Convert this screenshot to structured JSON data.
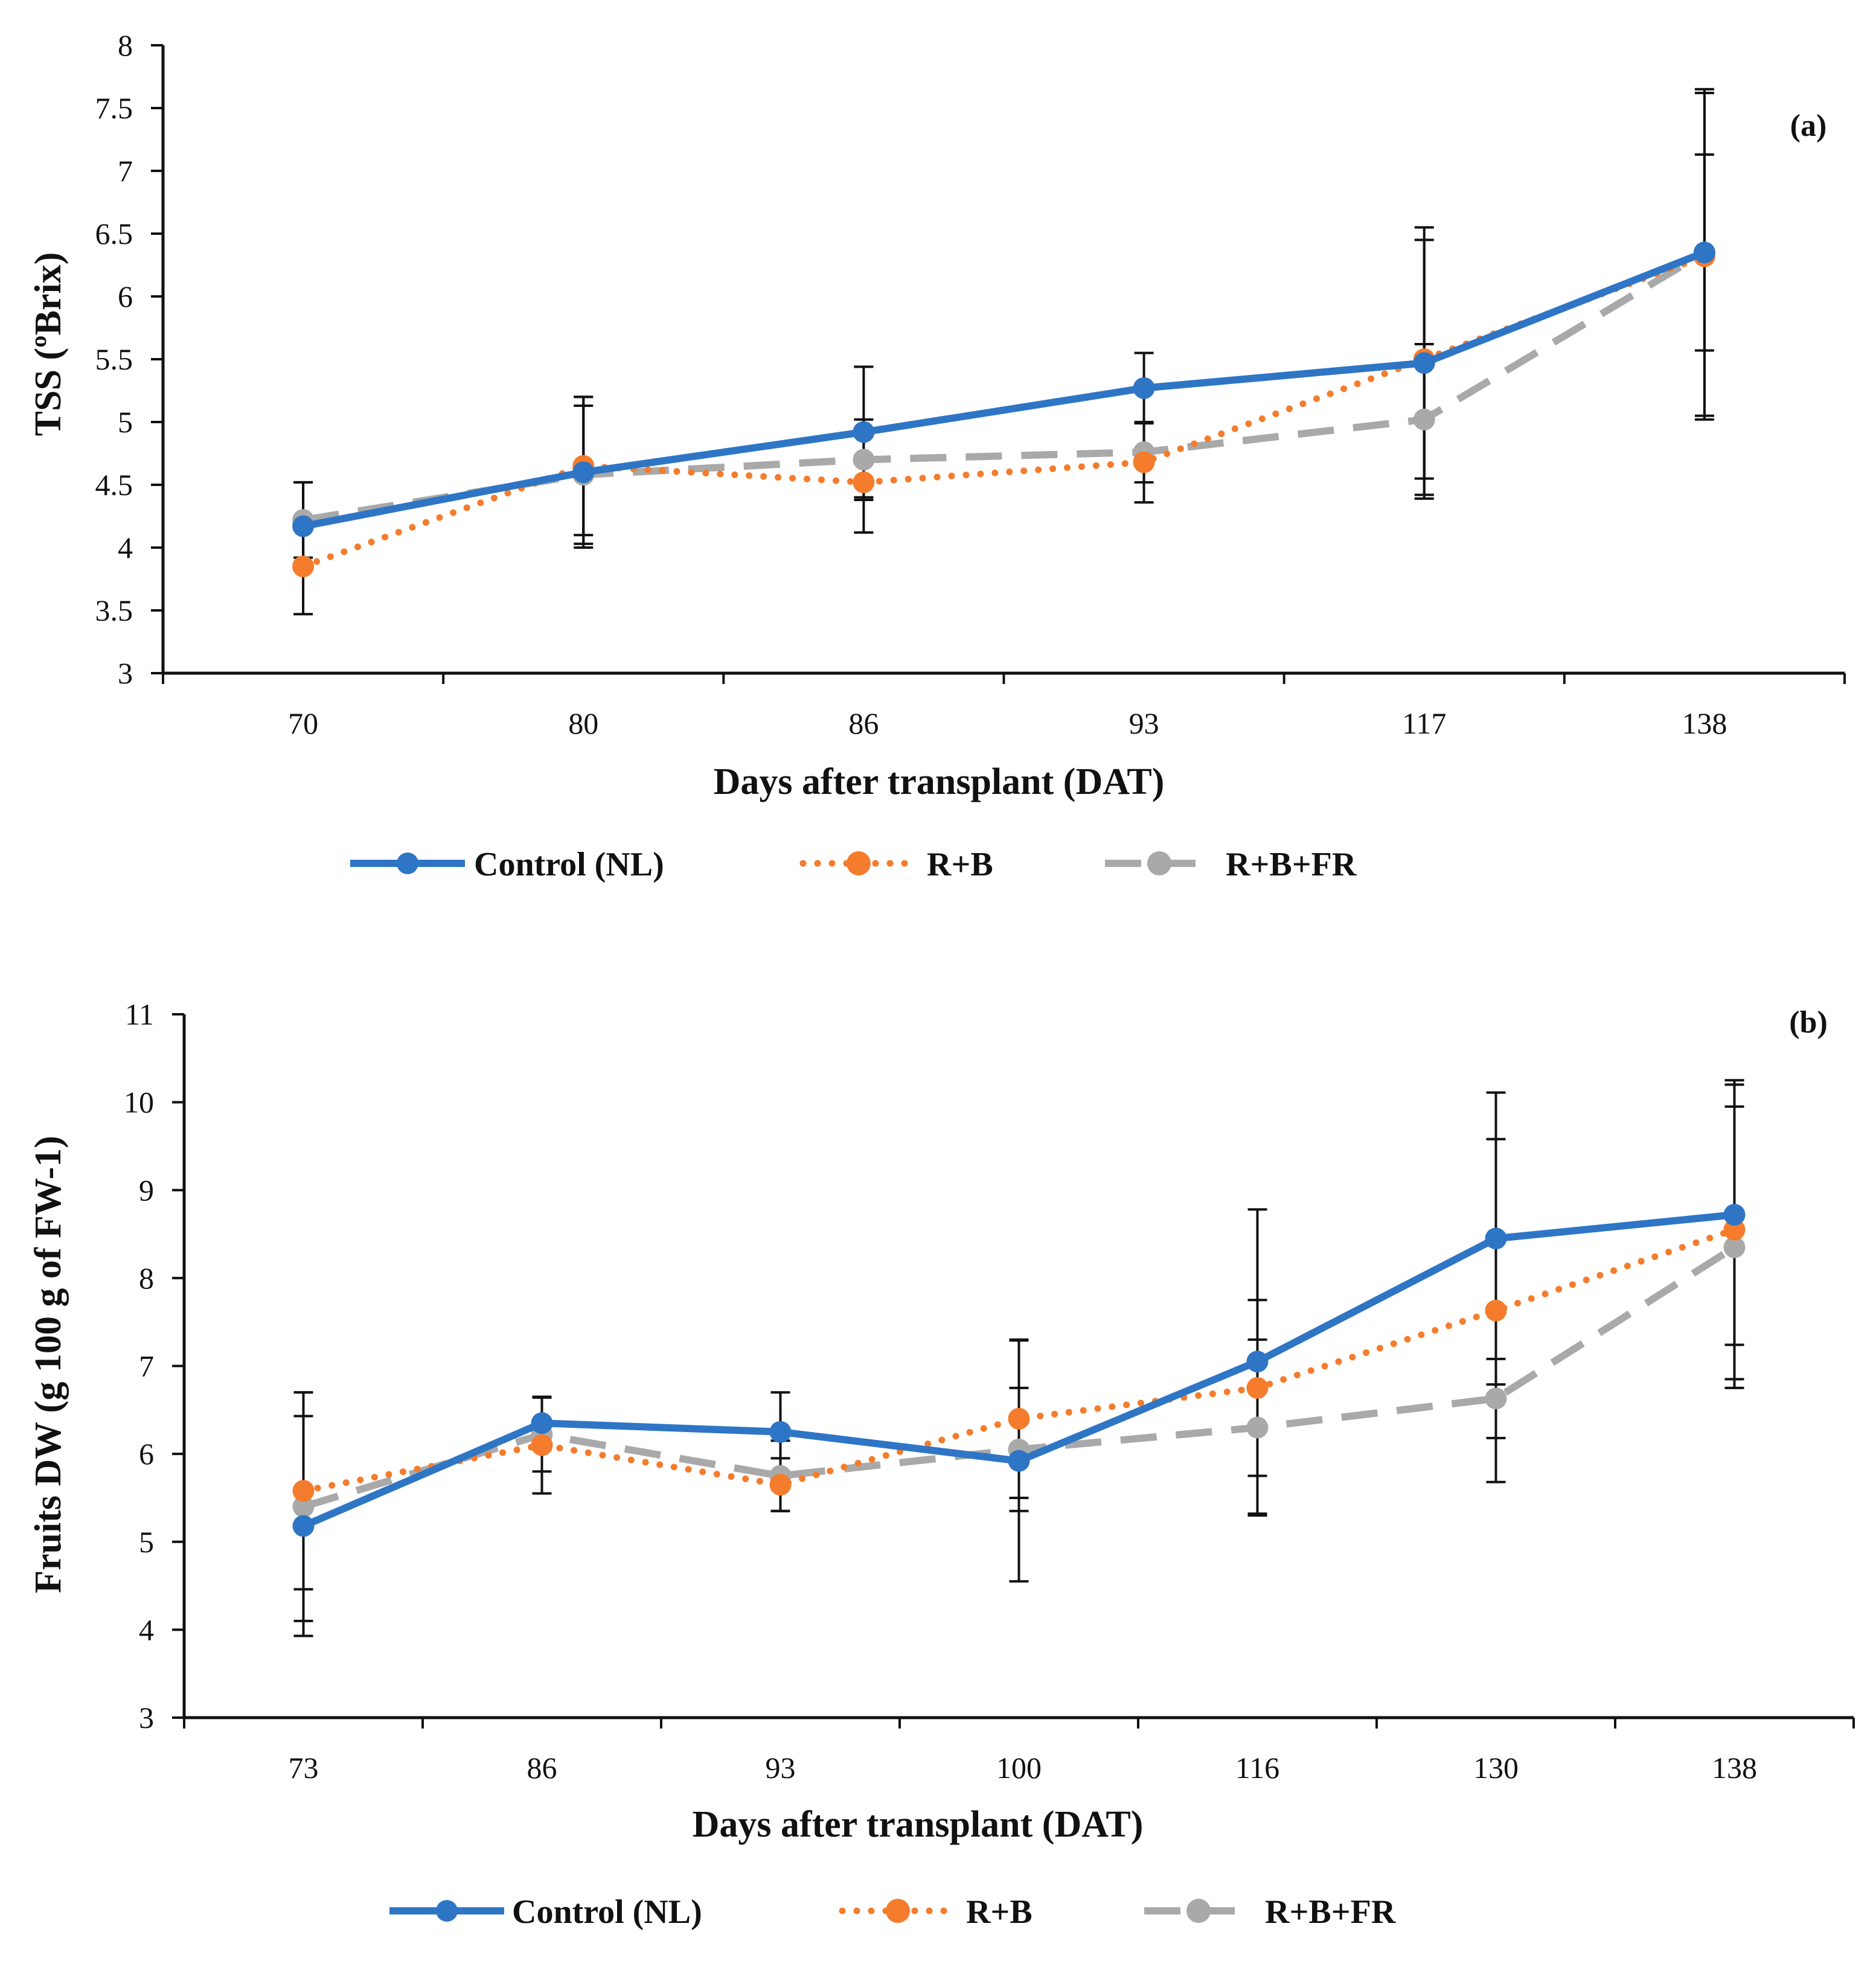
{
  "chart_data": [
    {
      "type": "line",
      "panel_label": "(a)",
      "xlabel": "Days after transplant (DAT)",
      "ylabel": "TSS (ºBrix)",
      "categories": [
        "70",
        "80",
        "86",
        "93",
        "117",
        "138"
      ],
      "ylim": [
        3,
        8
      ],
      "yticks": [
        "3",
        "3.5",
        "4",
        "4.5",
        "5",
        "5.5",
        "6",
        "6.5",
        "7",
        "7.5",
        "8"
      ],
      "grid": false,
      "legend_position": "bottom",
      "series": [
        {
          "name": "Control (NL)",
          "color": "#2E75C5",
          "style": "solid",
          "values": [
            4.17,
            4.6,
            4.92,
            5.27,
            5.47,
            6.35
          ],
          "errors": [
            0.35,
            0.6,
            0.52,
            0.28,
            1.08,
            1.3
          ]
        },
        {
          "name": "R+B",
          "color": "#F47C2C",
          "style": "dotted",
          "values": [
            3.85,
            4.65,
            4.52,
            4.68,
            5.5,
            6.32
          ],
          "errors": [
            0.38,
            0.55,
            0.4,
            0.32,
            0.95,
            1.3
          ]
        },
        {
          "name": "R+B+FR",
          "color": "#A9A9A9",
          "style": "dashed",
          "values": [
            4.22,
            4.58,
            4.7,
            4.76,
            5.02,
            6.35
          ],
          "errors": [
            0.3,
            0.55,
            0.32,
            0.24,
            0.6,
            0.78
          ]
        }
      ]
    },
    {
      "type": "line",
      "panel_label": "(b)",
      "xlabel": "Days after transplant (DAT)",
      "ylabel": "Fruits DW (g 100 g of FW-1)",
      "categories": [
        "73",
        "86",
        "93",
        "100",
        "116",
        "130",
        "138"
      ],
      "ylim": [
        3,
        11
      ],
      "yticks": [
        "3",
        "4",
        "5",
        "6",
        "7",
        "8",
        "9",
        "10",
        "11"
      ],
      "grid": false,
      "legend_position": "bottom",
      "series": [
        {
          "name": "Control (NL)",
          "color": "#2E75C5",
          "style": "solid",
          "values": [
            5.18,
            6.35,
            6.25,
            5.92,
            7.05,
            8.45,
            8.72
          ],
          "errors": [
            1.25,
            0.3,
            0.45,
            1.37,
            1.73,
            1.66,
            1.48
          ]
        },
        {
          "name": "R+B",
          "color": "#F47C2C",
          "style": "dotted",
          "values": [
            5.58,
            6.1,
            5.65,
            6.4,
            6.75,
            7.63,
            8.55
          ],
          "errors": [
            1.12,
            0.55,
            0.3,
            0.9,
            1.0,
            1.95,
            1.7
          ]
        },
        {
          "name": "R+B+FR",
          "color": "#A9A9A9",
          "style": "dashed",
          "values": [
            5.4,
            6.22,
            5.75,
            6.05,
            6.3,
            6.63,
            8.35
          ],
          "errors": [
            1.3,
            0.42,
            0.4,
            0.7,
            1.0,
            0.45,
            1.6
          ]
        }
      ]
    }
  ]
}
